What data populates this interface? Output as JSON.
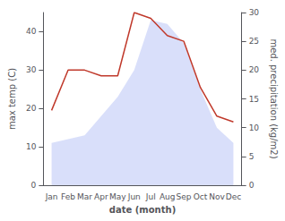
{
  "chart_data": {
    "type": "line",
    "categories": [
      "Jan",
      "Feb",
      "Mar",
      "Apr",
      "May",
      "Jun",
      "Jul",
      "Aug",
      "Sep",
      "Oct",
      "Nov",
      "Dec"
    ],
    "series": [
      {
        "type": "area",
        "color": "#aab8f5",
        "values": [
          11,
          12,
          13,
          18,
          23,
          30,
          43,
          42,
          37,
          25,
          15,
          11
        ]
      },
      {
        "type": "line",
        "color": "#c0392b",
        "axis": "y2",
        "values": [
          13,
          20,
          20,
          19,
          19,
          30,
          29,
          26,
          25,
          17,
          12,
          11
        ]
      }
    ],
    "xlabel": "date (month)",
    "ylabel": "max temp (C)",
    "y2label": "med. precipitation (kg/m2)",
    "ylim": [
      0,
      45
    ],
    "yticks": [
      0,
      10,
      20,
      30,
      40
    ],
    "y2lim": [
      0,
      30
    ],
    "y2ticks": [
      0,
      5,
      10,
      15,
      20,
      25,
      30
    ],
    "grid": false
  }
}
